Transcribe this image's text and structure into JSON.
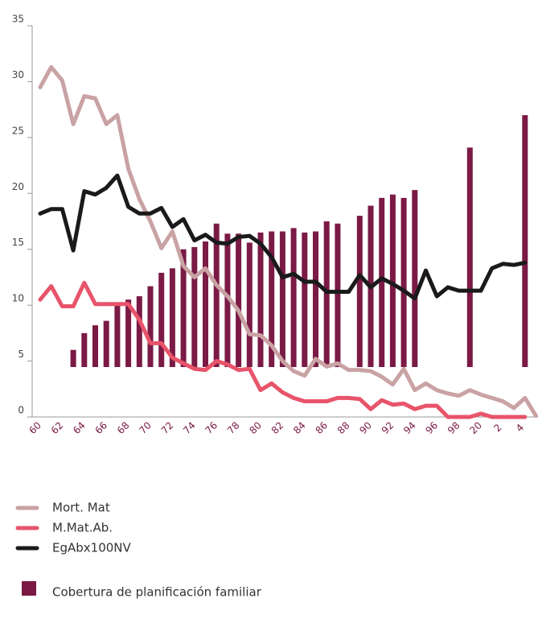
{
  "chart_data": {
    "type": "combo",
    "categories": [
      "60",
      null,
      "62",
      null,
      "64",
      null,
      "66",
      null,
      "68",
      null,
      "70",
      null,
      "72",
      null,
      "74",
      null,
      "76",
      null,
      "78",
      null,
      "80",
      null,
      "82",
      null,
      "84",
      null,
      "86",
      null,
      "88",
      null,
      "90",
      null,
      "92",
      null,
      "94",
      null,
      "96",
      null,
      "98",
      null,
      "20",
      null,
      "2",
      null,
      "4",
      null
    ],
    "ylim": [
      0,
      35
    ],
    "yticks": [
      0,
      5,
      10,
      15,
      20,
      25,
      30,
      35
    ],
    "series": [
      {
        "name": "Cobertura de planificación familiar",
        "type": "bar",
        "color": "#7a1a45",
        "values": [
          null,
          null,
          null,
          6.0,
          7.5,
          8.2,
          8.6,
          10.0,
          10.5,
          10.8,
          11.7,
          12.9,
          13.3,
          15.0,
          15.2,
          15.7,
          17.3,
          16.4,
          16.4,
          15.6,
          16.5,
          16.6,
          16.6,
          16.9,
          16.5,
          16.6,
          17.5,
          17.3,
          null,
          18.0,
          18.9,
          19.6,
          19.9,
          19.6,
          20.3,
          null,
          null,
          null,
          null,
          24.1,
          null,
          null,
          null,
          null,
          27.0,
          null
        ]
      },
      {
        "name": "Mort. Mat",
        "type": "line",
        "color": "#c9a2a4",
        "values": [
          29.5,
          31.3,
          30.1,
          26.2,
          28.7,
          28.5,
          26.2,
          27.0,
          22.2,
          19.5,
          17.5,
          15.1,
          16.6,
          13.5,
          12.5,
          13.3,
          11.8,
          10.8,
          9.5,
          7.4,
          7.3,
          6.4,
          5.0,
          4.1,
          3.7,
          5.2,
          4.5,
          4.8,
          4.2,
          4.2,
          4.1,
          3.6,
          2.9,
          4.3,
          2.4,
          3.0,
          2.4,
          2.1,
          1.9,
          2.4,
          2.0,
          1.7,
          1.4,
          0.8,
          1.7,
          0.1
        ]
      },
      {
        "name": "M.Mat.Ab.",
        "type": "line",
        "color": "#e8546a",
        "values": [
          10.5,
          11.7,
          9.9,
          9.9,
          12.0,
          10.1,
          10.1,
          10.1,
          10.1,
          8.7,
          6.6,
          6.6,
          5.3,
          4.8,
          4.3,
          4.2,
          5.0,
          4.7,
          4.2,
          4.3,
          2.4,
          3.0,
          2.2,
          1.7,
          1.4,
          1.4,
          1.4,
          1.7,
          1.7,
          1.6,
          0.7,
          1.5,
          1.1,
          1.2,
          0.7,
          1.0,
          1.0,
          0,
          0,
          0,
          0.3,
          0,
          0,
          0,
          0,
          null
        ]
      },
      {
        "name": "EgAbx100NV",
        "type": "line",
        "color": "#1a1a1a",
        "values": [
          18.2,
          18.6,
          18.6,
          14.9,
          20.2,
          19.9,
          20.5,
          21.6,
          18.8,
          18.2,
          18.2,
          18.7,
          17.0,
          17.7,
          15.8,
          16.3,
          15.6,
          15.5,
          16.1,
          16.2,
          15.5,
          14.3,
          12.5,
          12.8,
          12.1,
          12.1,
          11.2,
          11.2,
          11.2,
          12.7,
          11.6,
          12.4,
          11.9,
          11.3,
          10.6,
          13.1,
          10.8,
          11.6,
          11.3,
          11.3,
          11.3,
          13.3,
          13.7,
          13.6,
          13.8,
          null
        ]
      }
    ]
  }
}
